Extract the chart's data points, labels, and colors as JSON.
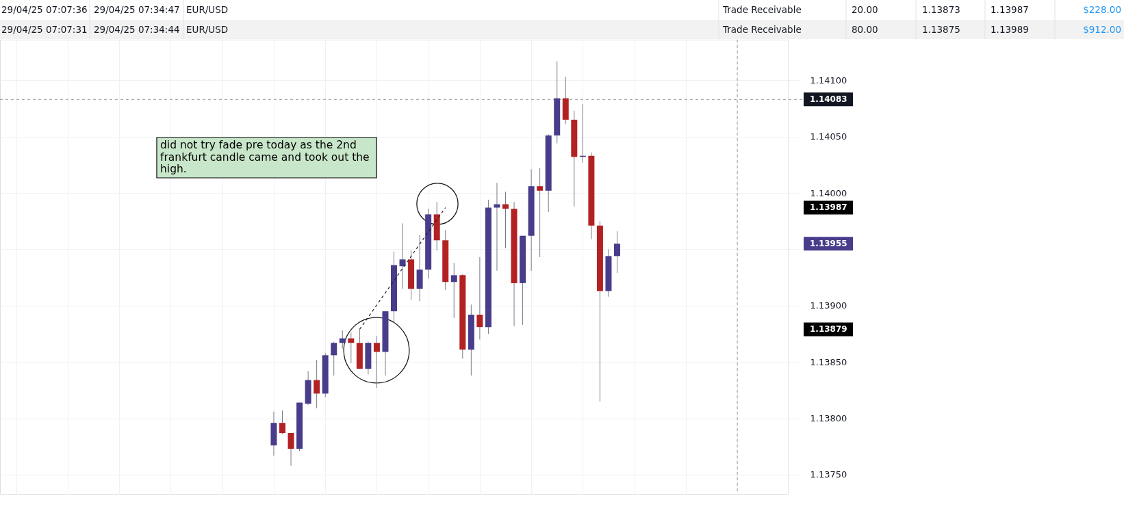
{
  "chart_data": {
    "type": "candlestick",
    "categories": [
      null,
      null,
      null,
      null,
      null,
      null,
      null,
      null,
      null,
      null,
      null,
      null,
      null,
      null,
      null,
      null,
      null,
      null,
      null,
      null,
      null,
      null,
      null,
      null,
      null,
      null,
      null,
      null,
      null,
      null,
      null,
      null,
      null,
      null,
      null,
      null,
      null,
      null,
      null,
      null,
      null,
      null,
      null,
      null,
      null,
      null,
      null,
      null,
      null,
      null,
      null,
      null,
      null,
      null,
      null,
      null,
      null,
      null,
      null,
      null,
      null,
      null,
      null,
      null,
      null,
      null,
      null,
      null,
      null,
      null,
      null,
      null,
      null,
      null,
      null,
      null,
      null,
      null,
      null,
      null,
      null,
      null,
      null,
      null,
      null,
      null,
      null,
      null,
      null,
      null,
      null
    ],
    "ohlc": [
      null,
      null,
      null,
      null,
      null,
      null,
      null,
      null,
      null,
      null,
      null,
      null,
      null,
      null,
      null,
      null,
      null,
      null,
      null,
      null,
      null,
      null,
      null,
      null,
      null,
      null,
      null,
      null,
      null,
      null,
      null,
      [
        1.13776,
        1.13806,
        1.13767,
        1.13796
      ],
      [
        1.13796,
        1.13807,
        1.13786,
        1.13787
      ],
      [
        1.13787,
        1.13787,
        1.13758,
        1.13773
      ],
      [
        1.13773,
        1.13814,
        1.13771,
        1.13814
      ],
      [
        1.13813,
        1.13842,
        1.13812,
        1.13834
      ],
      [
        1.13834,
        1.13852,
        1.13809,
        1.13822
      ],
      [
        1.13822,
        1.13858,
        1.13819,
        1.13856
      ],
      [
        1.13856,
        1.13868,
        1.13838,
        1.13867
      ],
      [
        1.13867,
        1.13878,
        1.13862,
        1.13871
      ],
      [
        1.13871,
        1.13876,
        1.13849,
        1.13867
      ],
      [
        1.13867,
        1.13879,
        1.13844,
        1.13844
      ],
      [
        1.13844,
        1.13868,
        1.13839,
        1.13867
      ],
      [
        1.13867,
        1.13873,
        1.13827,
        1.13859
      ],
      [
        1.13859,
        1.13895,
        1.13838,
        1.13895
      ],
      [
        1.13895,
        1.13948,
        1.13885,
        1.13936
      ],
      [
        1.13935,
        1.13973,
        1.13915,
        1.13941
      ],
      [
        1.13941,
        1.13949,
        1.13905,
        1.13915
      ],
      [
        1.13915,
        1.13963,
        1.13904,
        1.13932
      ],
      [
        1.13932,
        1.13986,
        1.13924,
        1.13981
      ],
      [
        1.13981,
        1.13992,
        1.13949,
        1.13958
      ],
      [
        1.13958,
        1.13967,
        1.13914,
        1.13921
      ],
      [
        1.13921,
        1.13938,
        1.13889,
        1.13927
      ],
      [
        1.13927,
        1.13928,
        1.13853,
        1.13861
      ],
      [
        1.13861,
        1.13901,
        1.13838,
        1.13892
      ],
      [
        1.13892,
        1.13943,
        1.1387,
        1.13881
      ],
      [
        1.13881,
        1.13994,
        1.13875,
        1.13987
      ],
      [
        1.13987,
        1.14009,
        1.13931,
        1.1399
      ],
      [
        1.1399,
        1.14001,
        1.13951,
        1.13986
      ],
      [
        1.13986,
        1.13992,
        1.13882,
        1.1392
      ],
      [
        1.1392,
        1.13962,
        1.13883,
        1.13962
      ],
      [
        1.13962,
        1.14021,
        1.13931,
        1.14006
      ],
      [
        1.14006,
        1.14022,
        1.13943,
        1.14002
      ],
      [
        1.14002,
        1.14052,
        1.13983,
        1.14051
      ],
      [
        1.14051,
        1.14117,
        1.14044,
        1.14084
      ],
      [
        1.14084,
        1.14103,
        1.14061,
        1.14065
      ],
      [
        1.14065,
        1.14073,
        1.13988,
        1.14032
      ],
      [
        1.14032,
        1.14079,
        1.14027,
        1.14033
      ],
      [
        1.14033,
        1.14036,
        1.13959,
        1.13971
      ],
      [
        1.13971,
        1.13975,
        1.13815,
        1.13913
      ],
      [
        1.13913,
        1.1395,
        1.13908,
        1.13944
      ],
      [
        1.13944,
        1.13966,
        1.13929,
        1.13955
      ],
      null,
      null,
      null,
      null,
      null,
      null,
      null,
      null,
      null,
      null,
      null,
      null,
      null,
      null,
      null,
      null,
      null,
      null,
      null
    ],
    "colors": [
      null,
      null,
      null,
      null,
      null,
      null,
      null,
      null,
      null,
      null,
      null,
      null,
      null,
      null,
      null,
      null,
      null,
      null,
      null,
      null,
      null,
      null,
      null,
      null,
      null,
      null,
      null,
      null,
      null,
      null,
      null,
      "#483d8b",
      "#b22222",
      "#b22222",
      "#483d8b",
      "#483d8b",
      "#b22222",
      "#483d8b",
      "#483d8b",
      "#483d8b",
      "#b22222",
      "#b22222",
      "#483d8b",
      "#b22222",
      "#483d8b",
      "#483d8b",
      "#483d8b",
      "#b22222",
      "#483d8b",
      "#483d8b",
      "#b22222",
      "#b22222",
      "#483d8b",
      "#b22222",
      "#483d8b",
      "#b22222",
      "#483d8b",
      "#483d8b",
      "#b22222",
      "#b22222",
      "#483d8b",
      "#483d8b",
      "#b22222",
      "#483d8b",
      "#483d8b",
      "#b22222",
      "#b22222",
      "#483d8b",
      "#b22222",
      "#b22222",
      "#483d8b",
      "#483d8b",
      null,
      null,
      null,
      null,
      null,
      null,
      null,
      null,
      null,
      null,
      null,
      null,
      null,
      null,
      null,
      null,
      null,
      null,
      null
    ],
    "series": [
      {
        "type": "line",
        "color": "#222222",
        "line_style": "dashed",
        "values": [
          null,
          null,
          null,
          null,
          null,
          null,
          null,
          null,
          null,
          null,
          null,
          null,
          null,
          null,
          null,
          null,
          null,
          null,
          null,
          null,
          null,
          null,
          null,
          null,
          null,
          null,
          null,
          null,
          null,
          null,
          null,
          null,
          null,
          null,
          null,
          null,
          null,
          null,
          null,
          null,
          null,
          1.13879,
          null,
          null,
          null,
          null,
          null,
          null,
          null,
          null,
          null,
          1.13987,
          null,
          null,
          null,
          null,
          null,
          null,
          null,
          null,
          null,
          null,
          null,
          null,
          null,
          null,
          null,
          null,
          null,
          null,
          null,
          null,
          null,
          null,
          null,
          null,
          null,
          null,
          null,
          null,
          null,
          null,
          null,
          null,
          null,
          null,
          null,
          null,
          null,
          null,
          null
        ]
      }
    ],
    "ylim": [
      1.13733,
      1.14136
    ],
    "yticks": [
      {
        "value": 1.1375,
        "label": "1.13750"
      },
      {
        "value": 1.138,
        "label": "1.13800"
      },
      {
        "value": 1.1385,
        "label": "1.13850"
      },
      {
        "value": 1.139,
        "label": "1.13900"
      },
      {
        "value": 1.1395,
        "label": null
      },
      {
        "value": 1.14,
        "label": "1.14000"
      },
      {
        "value": 1.1405,
        "label": "1.14050"
      },
      {
        "value": 1.141,
        "label": "1.14100"
      },
      1.13879,
      1.13955,
      1.13987
    ],
    "grid": true,
    "tick_labels": "y",
    "ref_lines": [
      {
        "axis": "y",
        "value": 1.14083,
        "label": "1.14083",
        "line_style": "dashed",
        "color": "#9598a1"
      }
    ],
    "annotations": [
      "29/04/25 07:07:36",
      "29/04/25 07:34:47",
      "EUR/USD",
      "Trade Receivable",
      "20.00",
      "1.13873",
      "1.13987",
      "$228.00",
      "29/04/25 07:07:31",
      "29/04/25 07:34:44",
      "EUR/USD",
      "Trade Receivable",
      "80.00",
      "1.13875",
      "1.13989",
      "$912.00",
      "did not try fade pre today as the 2nd frankfurt candle came and took out the high."
    ]
  }
}
